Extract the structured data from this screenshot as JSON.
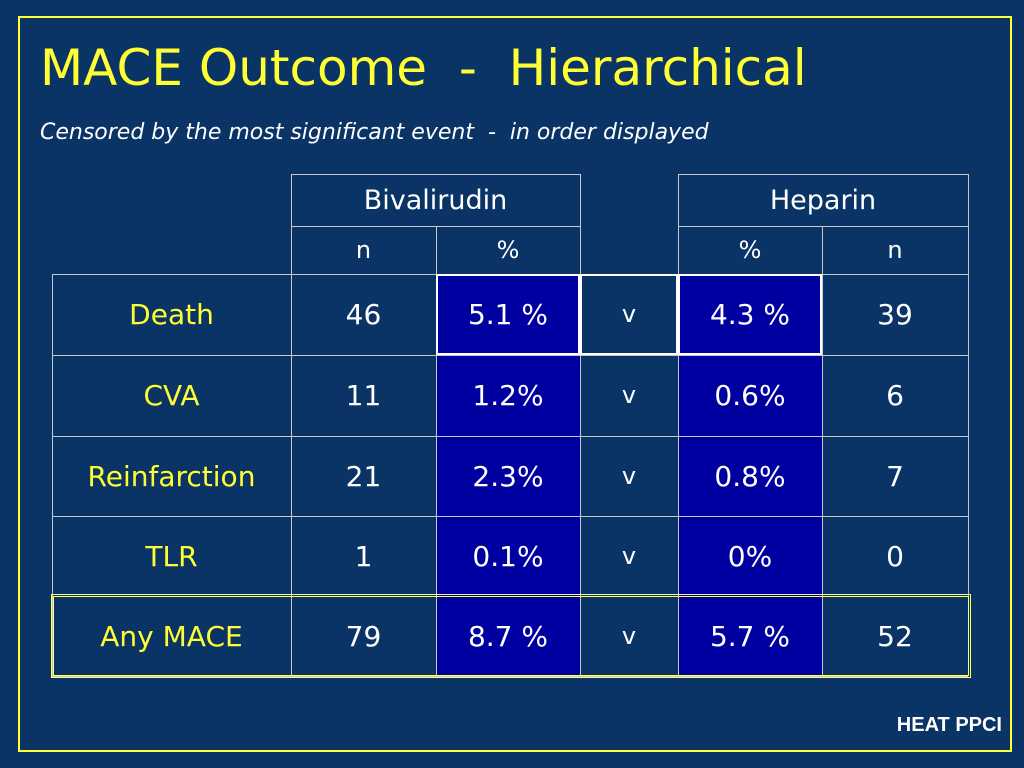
{
  "slide": {
    "title": "MACE Outcome  -  Hierarchical",
    "subtitle": "Censored by the most significant event  -  in order displayed",
    "footer": "HEAT PPCI"
  },
  "table": {
    "groups": {
      "left": "Bivalirudin",
      "right": "Heparin"
    },
    "subheaders": {
      "biv_n": "n",
      "biv_pct": "%",
      "hep_pct": "%",
      "hep_n": "n"
    },
    "rows": [
      {
        "label": "Death",
        "biv_n": "46",
        "biv_pct": "5.1 %",
        "comparator": "v",
        "hep_pct": "4.3 %",
        "hep_n": "39"
      },
      {
        "label": "CVA",
        "biv_n": "11",
        "biv_pct": "1.2%",
        "comparator": "v",
        "hep_pct": "0.6%",
        "hep_n": "6"
      },
      {
        "label": "Reinfarction",
        "biv_n": "21",
        "biv_pct": "2.3%",
        "comparator": "v",
        "hep_pct": "0.8%",
        "hep_n": "7"
      },
      {
        "label": "TLR",
        "biv_n": "1",
        "biv_pct": "0.1%",
        "comparator": "v",
        "hep_pct": "0%",
        "hep_n": "0"
      },
      {
        "label": "Any MACE",
        "biv_n": "79",
        "biv_pct": "8.7 %",
        "comparator": "v",
        "hep_pct": "5.7 %",
        "hep_n": "52"
      }
    ]
  },
  "colors": {
    "background": "#0a3366",
    "title": "#ffff33",
    "highlight_cell": "#0000a0",
    "highlight_border": "#ffff66"
  }
}
